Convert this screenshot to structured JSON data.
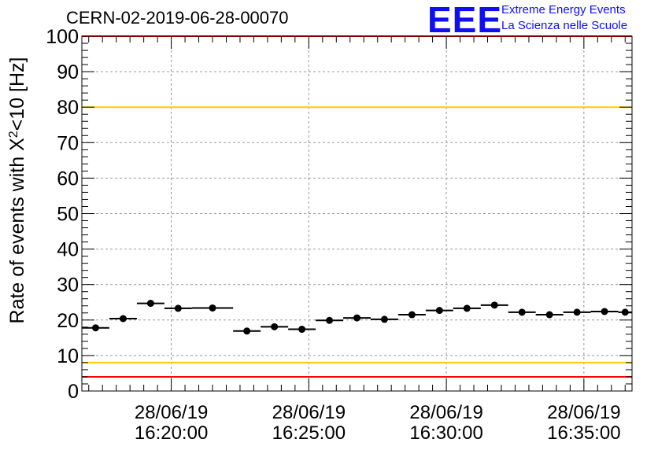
{
  "header": {
    "title": "CERN-02-2019-06-28-00070",
    "logo_mark": "EEE",
    "logo_line1": "Extreme Energy Events",
    "logo_line2": "La Scienza nelle Scuole"
  },
  "chart_data": {
    "type": "scatter",
    "title": "CERN-02-2019-06-28-00070",
    "ylabel_parts": [
      "Rate of events with ",
      "X",
      "2",
      "<10 [Hz]"
    ],
    "ylim": [
      0,
      100
    ],
    "y_ticks": [
      0,
      10,
      20,
      30,
      40,
      50,
      60,
      70,
      80,
      90,
      100
    ],
    "x_range": [
      "28/06/19 16:16:45",
      "28/06/19 16:36:45"
    ],
    "x_ticks": [
      {
        "time": "16:20:00",
        "date": "28/06/19"
      },
      {
        "time": "16:25:00",
        "date": "28/06/19"
      },
      {
        "time": "16:30:00",
        "date": "28/06/19"
      },
      {
        "time": "16:35:00",
        "date": "28/06/19"
      }
    ],
    "grid": true,
    "reference_lines": [
      {
        "y": 100,
        "color": "#ff0000"
      },
      {
        "y": 80,
        "color": "#ffcc00"
      },
      {
        "y": 8,
        "color": "#ffcc00"
      },
      {
        "y": 4,
        "color": "#ff0000"
      }
    ],
    "points": [
      {
        "x": "16:16:45",
        "x_end": "16:17:45",
        "y": 17.8
      },
      {
        "x": "16:17:45",
        "x_end": "16:18:45",
        "y": 20.4
      },
      {
        "x": "16:18:45",
        "x_end": "16:19:45",
        "y": 24.7
      },
      {
        "x": "16:19:45",
        "x_end": "16:20:45",
        "y": 23.3
      },
      {
        "x": "16:20:45",
        "x_end": "16:22:15",
        "y": 23.4
      },
      {
        "x": "16:22:15",
        "x_end": "16:23:15",
        "y": 16.9
      },
      {
        "x": "16:23:15",
        "x_end": "16:24:15",
        "y": 18.1
      },
      {
        "x": "16:24:15",
        "x_end": "16:25:15",
        "y": 17.4
      },
      {
        "x": "16:25:15",
        "x_end": "16:26:15",
        "y": 19.9
      },
      {
        "x": "16:26:15",
        "x_end": "16:27:15",
        "y": 20.6
      },
      {
        "x": "16:27:15",
        "x_end": "16:28:15",
        "y": 20.2
      },
      {
        "x": "16:28:15",
        "x_end": "16:29:15",
        "y": 21.5
      },
      {
        "x": "16:29:15",
        "x_end": "16:30:15",
        "y": 22.7
      },
      {
        "x": "16:30:15",
        "x_end": "16:31:15",
        "y": 23.3
      },
      {
        "x": "16:31:15",
        "x_end": "16:32:15",
        "y": 24.2
      },
      {
        "x": "16:32:15",
        "x_end": "16:33:15",
        "y": 22.2
      },
      {
        "x": "16:33:15",
        "x_end": "16:34:15",
        "y": 21.5
      },
      {
        "x": "16:34:15",
        "x_end": "16:35:15",
        "y": 22.2
      },
      {
        "x": "16:35:15",
        "x_end": "16:36:15",
        "y": 22.4
      },
      {
        "x": "16:36:15",
        "x_end": "16:36:45",
        "y": 22.2
      }
    ],
    "colors": {
      "marker": "#000000",
      "grid": "#999999"
    }
  }
}
